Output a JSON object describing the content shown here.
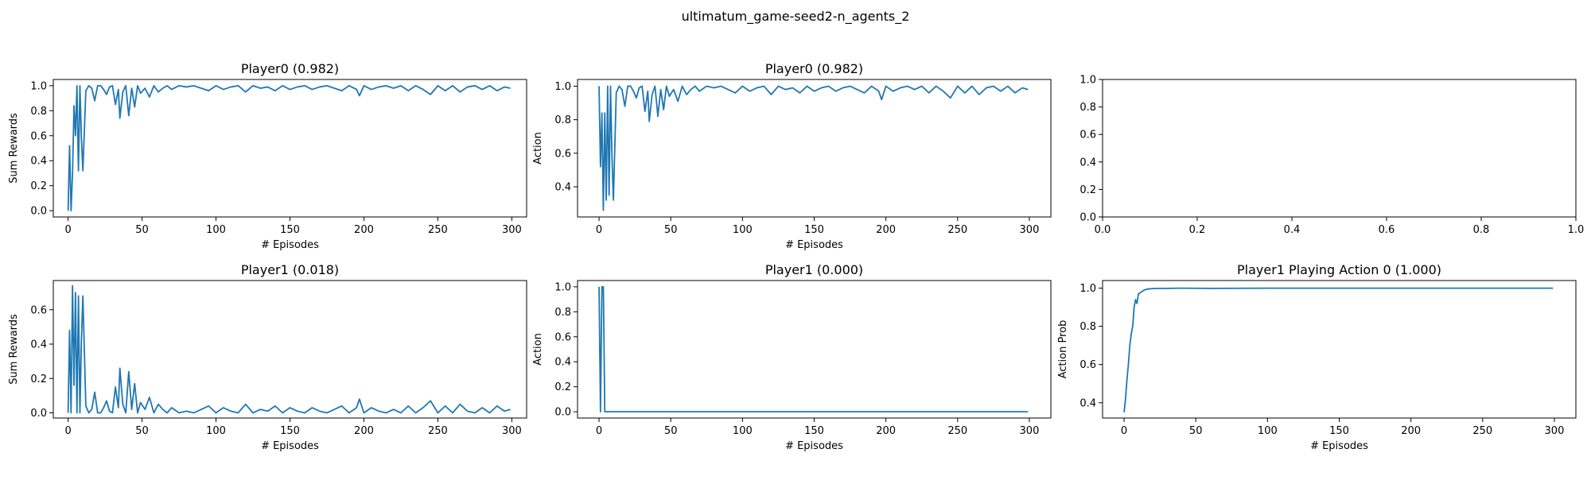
{
  "figure": {
    "suptitle": "ultimatum_game-seed2-n_agents_2"
  },
  "colors": {
    "line": "#1f77b4",
    "axes": "#000000",
    "background": "#ffffff"
  },
  "chart_data": [
    {
      "id": "p0-rewards",
      "type": "line",
      "title": "Player0 (0.982)",
      "xlabel": "# Episodes",
      "ylabel": "Sum Rewards",
      "xlim": [
        -10,
        310
      ],
      "ylim": [
        -0.05,
        1.05
      ],
      "xticks": [
        0,
        50,
        100,
        150,
        200,
        250,
        300
      ],
      "yticks": [
        0.0,
        0.2,
        0.4,
        0.6,
        0.8,
        1.0
      ],
      "xtick_labels": [
        "0",
        "50",
        "100",
        "150",
        "200",
        "250",
        "300"
      ],
      "ytick_labels": [
        "0.0",
        "0.2",
        "0.4",
        "0.6",
        "0.8",
        "1.0"
      ],
      "series": [
        {
          "x": [
            0,
            1,
            2,
            3,
            4,
            5,
            6,
            7,
            8,
            9,
            10,
            12,
            14,
            16,
            18,
            20,
            22,
            24,
            26,
            28,
            30,
            32,
            34,
            35,
            37,
            39,
            41,
            43,
            45,
            47,
            49,
            52,
            55,
            58,
            61,
            64,
            67,
            70,
            75,
            80,
            85,
            90,
            95,
            100,
            105,
            110,
            115,
            120,
            125,
            130,
            135,
            140,
            145,
            150,
            155,
            160,
            165,
            170,
            175,
            180,
            185,
            190,
            195,
            197,
            200,
            205,
            210,
            215,
            220,
            225,
            230,
            235,
            240,
            245,
            250,
            255,
            260,
            265,
            270,
            275,
            280,
            285,
            290,
            295,
            299
          ],
          "y": [
            0.0,
            0.52,
            0.0,
            0.3,
            0.84,
            0.6,
            1.0,
            0.32,
            1.0,
            0.58,
            0.32,
            0.96,
            1.0,
            0.98,
            0.88,
            1.0,
            1.0,
            0.97,
            0.93,
            0.99,
            1.0,
            0.85,
            0.97,
            0.74,
            0.95,
            1.0,
            0.76,
            0.98,
            0.83,
            1.0,
            0.94,
            0.98,
            0.91,
            1.0,
            0.95,
            0.98,
            1.0,
            0.97,
            1.0,
            0.99,
            1.0,
            0.98,
            0.96,
            1.0,
            0.97,
            0.99,
            1.0,
            0.95,
            1.0,
            0.98,
            0.99,
            0.96,
            1.0,
            0.97,
            0.99,
            1.0,
            0.97,
            0.99,
            1.0,
            0.98,
            0.96,
            1.0,
            0.97,
            0.92,
            1.0,
            0.97,
            0.99,
            1.0,
            0.98,
            1.0,
            0.96,
            1.0,
            0.97,
            0.93,
            1.0,
            0.96,
            1.0,
            0.95,
            0.99,
            1.0,
            0.97,
            1.0,
            0.96,
            0.99,
            0.98
          ]
        }
      ]
    },
    {
      "id": "p0-action",
      "type": "line",
      "title": "Player0 (0.982)",
      "xlabel": "# Episodes",
      "ylabel": "Action",
      "xlim": [
        -15,
        315
      ],
      "ylim": [
        0.22,
        1.04
      ],
      "xticks": [
        0,
        50,
        100,
        150,
        200,
        250,
        300
      ],
      "yticks": [
        0.4,
        0.6,
        0.8,
        1.0
      ],
      "xtick_labels": [
        "0",
        "50",
        "100",
        "150",
        "200",
        "250",
        "300"
      ],
      "ytick_labels": [
        "0.4",
        "0.6",
        "0.8",
        "1.0"
      ],
      "series": [
        {
          "x": [
            0,
            1,
            2,
            3,
            4,
            5,
            6,
            7,
            8,
            9,
            10,
            12,
            14,
            16,
            18,
            20,
            22,
            24,
            26,
            28,
            30,
            32,
            34,
            35,
            37,
            39,
            41,
            43,
            45,
            47,
            49,
            52,
            55,
            58,
            61,
            64,
            67,
            70,
            75,
            80,
            85,
            90,
            95,
            100,
            105,
            110,
            115,
            120,
            125,
            130,
            135,
            140,
            145,
            150,
            155,
            160,
            165,
            170,
            175,
            180,
            185,
            190,
            195,
            197,
            200,
            205,
            210,
            215,
            220,
            225,
            230,
            235,
            240,
            245,
            250,
            255,
            260,
            265,
            270,
            275,
            280,
            285,
            290,
            295,
            299
          ],
          "y": [
            1.0,
            0.52,
            0.84,
            0.26,
            0.84,
            0.32,
            1.0,
            0.35,
            1.0,
            0.58,
            0.32,
            0.96,
            1.0,
            0.98,
            0.88,
            1.0,
            1.0,
            0.97,
            0.93,
            0.99,
            1.0,
            0.85,
            0.97,
            0.79,
            0.95,
            1.0,
            0.82,
            0.98,
            0.86,
            1.0,
            0.94,
            0.98,
            0.91,
            1.0,
            0.95,
            0.98,
            1.0,
            0.97,
            1.0,
            0.99,
            1.0,
            0.98,
            0.96,
            1.0,
            0.97,
            0.99,
            1.0,
            0.95,
            1.0,
            0.98,
            0.99,
            0.96,
            1.0,
            0.97,
            0.99,
            1.0,
            0.97,
            0.99,
            1.0,
            0.98,
            0.96,
            1.0,
            0.97,
            0.92,
            1.0,
            0.97,
            0.99,
            1.0,
            0.98,
            1.0,
            0.96,
            1.0,
            0.97,
            0.93,
            1.0,
            0.96,
            1.0,
            0.95,
            0.99,
            1.0,
            0.97,
            1.0,
            0.96,
            0.99,
            0.98
          ]
        }
      ]
    },
    {
      "id": "empty-axes",
      "type": "line",
      "title": "",
      "xlabel": "",
      "ylabel": "",
      "xlim": [
        0,
        1
      ],
      "ylim": [
        0,
        1
      ],
      "xticks": [
        0.0,
        0.2,
        0.4,
        0.6,
        0.8,
        1.0
      ],
      "yticks": [
        0.0,
        0.2,
        0.4,
        0.6,
        0.8,
        1.0
      ],
      "xtick_labels": [
        "0.0",
        "0.2",
        "0.4",
        "0.6",
        "0.8",
        "1.0"
      ],
      "ytick_labels": [
        "0.0",
        "0.2",
        "0.4",
        "0.6",
        "0.8",
        "1.0"
      ],
      "series": []
    },
    {
      "id": "p1-rewards",
      "type": "line",
      "title": "Player1 (0.018)",
      "xlabel": "# Episodes",
      "ylabel": "Sum Rewards",
      "xlim": [
        -10,
        310
      ],
      "ylim": [
        -0.03,
        0.77
      ],
      "xticks": [
        0,
        50,
        100,
        150,
        200,
        250,
        300
      ],
      "yticks": [
        0.0,
        0.2,
        0.4,
        0.6
      ],
      "xtick_labels": [
        "0",
        "50",
        "100",
        "150",
        "200",
        "250",
        "300"
      ],
      "ytick_labels": [
        "0.0",
        "0.2",
        "0.4",
        "0.6"
      ],
      "series": [
        {
          "x": [
            0,
            1,
            2,
            3,
            4,
            5,
            6,
            7,
            8,
            9,
            10,
            12,
            14,
            16,
            18,
            20,
            22,
            24,
            26,
            28,
            30,
            32,
            34,
            35,
            37,
            39,
            41,
            43,
            45,
            47,
            49,
            52,
            55,
            58,
            61,
            64,
            67,
            70,
            75,
            80,
            85,
            90,
            95,
            100,
            105,
            110,
            115,
            120,
            125,
            130,
            135,
            140,
            145,
            150,
            155,
            160,
            165,
            170,
            175,
            180,
            185,
            190,
            195,
            197,
            200,
            205,
            210,
            215,
            220,
            225,
            230,
            235,
            240,
            245,
            250,
            255,
            260,
            265,
            270,
            275,
            280,
            285,
            290,
            295,
            299
          ],
          "y": [
            0.0,
            0.48,
            0.0,
            0.74,
            0.16,
            0.7,
            0.0,
            0.68,
            0.0,
            0.42,
            0.68,
            0.04,
            0.0,
            0.02,
            0.12,
            0.0,
            0.0,
            0.03,
            0.07,
            0.01,
            0.0,
            0.15,
            0.03,
            0.26,
            0.05,
            0.0,
            0.24,
            0.02,
            0.17,
            0.0,
            0.06,
            0.02,
            0.09,
            0.0,
            0.05,
            0.02,
            0.0,
            0.03,
            0.0,
            0.01,
            0.0,
            0.02,
            0.04,
            0.0,
            0.03,
            0.01,
            0.0,
            0.05,
            0.0,
            0.02,
            0.01,
            0.04,
            0.0,
            0.03,
            0.01,
            0.0,
            0.03,
            0.01,
            0.0,
            0.02,
            0.04,
            0.0,
            0.03,
            0.08,
            0.0,
            0.03,
            0.01,
            0.0,
            0.02,
            0.0,
            0.04,
            0.0,
            0.03,
            0.07,
            0.0,
            0.04,
            0.0,
            0.05,
            0.01,
            0.0,
            0.03,
            0.0,
            0.04,
            0.01,
            0.02
          ]
        }
      ]
    },
    {
      "id": "p1-action",
      "type": "line",
      "title": "Player1 (0.000)",
      "xlabel": "# Episodes",
      "ylabel": "Action",
      "xlim": [
        -15,
        315
      ],
      "ylim": [
        -0.05,
        1.05
      ],
      "xticks": [
        0,
        50,
        100,
        150,
        200,
        250,
        300
      ],
      "yticks": [
        0.0,
        0.2,
        0.4,
        0.6,
        0.8,
        1.0
      ],
      "xtick_labels": [
        "0",
        "50",
        "100",
        "150",
        "200",
        "250",
        "300"
      ],
      "ytick_labels": [
        "0.0",
        "0.2",
        "0.4",
        "0.6",
        "0.8",
        "1.0"
      ],
      "series": [
        {
          "x": [
            0,
            1,
            2,
            3,
            4,
            5,
            299
          ],
          "y": [
            1.0,
            0.0,
            1.0,
            1.0,
            0.0,
            0.0,
            0.0
          ]
        }
      ]
    },
    {
      "id": "p1-action-prob",
      "type": "line",
      "title": "Player1 Playing Action 0 (1.000)",
      "xlabel": "# Episodes",
      "ylabel": "Action Prob",
      "xlim": [
        -15,
        315
      ],
      "ylim": [
        0.32,
        1.04
      ],
      "xticks": [
        0,
        50,
        100,
        150,
        200,
        250,
        300
      ],
      "yticks": [
        0.4,
        0.6,
        0.8,
        1.0
      ],
      "xtick_labels": [
        "0",
        "50",
        "100",
        "150",
        "200",
        "250",
        "300"
      ],
      "ytick_labels": [
        "0.4",
        "0.6",
        "0.8",
        "1.0"
      ],
      "series": [
        {
          "x": [
            0,
            1,
            2,
            3,
            4,
            5,
            6,
            7,
            8,
            9,
            10,
            12,
            14,
            16,
            20,
            25,
            30,
            40,
            60,
            100,
            200,
            299
          ],
          "y": [
            0.35,
            0.42,
            0.52,
            0.6,
            0.7,
            0.76,
            0.8,
            0.9,
            0.94,
            0.92,
            0.97,
            0.98,
            0.99,
            0.995,
            0.998,
            0.999,
            0.999,
            1.0,
            0.999,
            1.0,
            1.0,
            1.0
          ]
        }
      ]
    }
  ]
}
